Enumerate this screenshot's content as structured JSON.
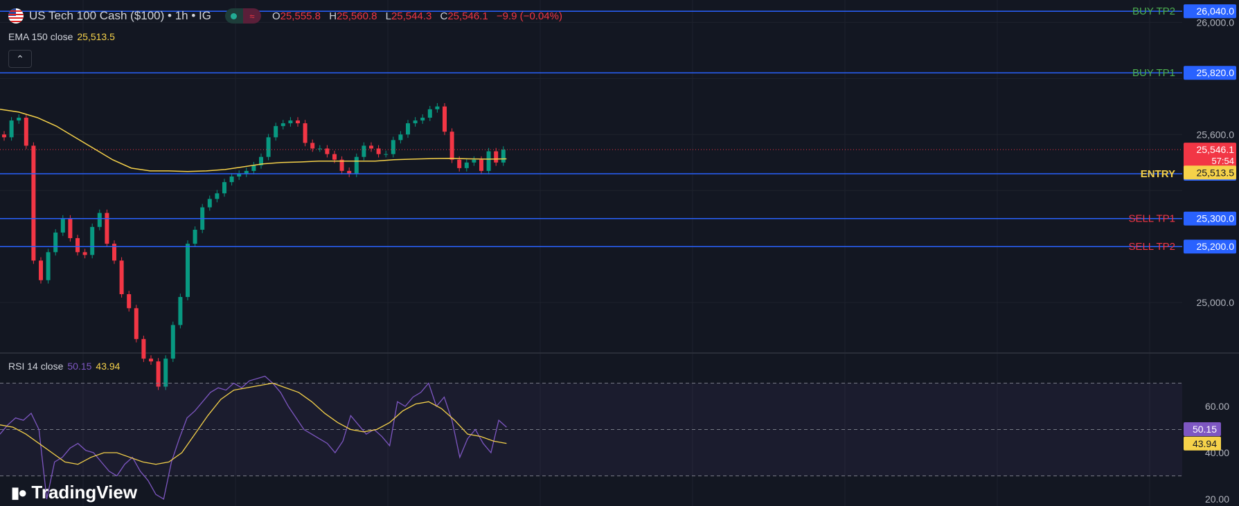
{
  "header": {
    "symbol_title": "US Tech 100 Cash ($100) • 1h • IG",
    "ohlc": [
      {
        "key": "O",
        "value": "25,555.8"
      },
      {
        "key": "H",
        "value": "25,560.8"
      },
      {
        "key": "L",
        "value": "25,544.3"
      },
      {
        "key": "C",
        "value": "25,546.1"
      }
    ],
    "change": "−9.9 (−0.04%)",
    "collapse_icon": "chevron-up-icon"
  },
  "ema_legend": {
    "label": "EMA 150 close",
    "value": "25,513.5"
  },
  "rsi_legend": {
    "label": "RSI 14 close",
    "value1": "50.15",
    "value2": "43.94"
  },
  "branding": {
    "text": "TradingView",
    "logo": "tv-logo-icon"
  },
  "colors": {
    "background": "#131722",
    "grid": "#1e222d",
    "up": "#089981",
    "down": "#f23645",
    "level_line": "#2962ff",
    "ema": "#f6d24a",
    "rsi": "#7e57c2",
    "rsi_ma": "#f6d24a",
    "buy_label": "#4caf50",
    "sell_label": "#f23645",
    "entry_label": "#f6d24a"
  },
  "chart_data": {
    "type": "candlestick",
    "y_axis_ticks": [
      "26,000.0",
      "25,600.0",
      "25,000.0"
    ],
    "price_range": [
      24820,
      26080
    ],
    "levels": [
      {
        "name": "BUY TP2",
        "value": "26,040.0",
        "price": 26040,
        "kind": "buy"
      },
      {
        "name": "BUY TP1",
        "value": "25,820.0",
        "price": 25820,
        "kind": "buy"
      },
      {
        "name": "ENTRY",
        "value": "25,460.0",
        "price": 25460,
        "kind": "entry"
      },
      {
        "name": "SELL TP1",
        "value": "25,300.0",
        "price": 25300,
        "kind": "sell"
      },
      {
        "name": "SELL TP2",
        "value": "25,200.0",
        "price": 25200,
        "kind": "sell"
      }
    ],
    "current_price": {
      "value": "25,546.1",
      "countdown": "57:54",
      "price": 25546.1
    },
    "ema_label": {
      "value": "25,513.5",
      "price": 25513.5
    },
    "ema_path": [
      25690,
      25680,
      25660,
      25630,
      25590,
      25550,
      25510,
      25480,
      25470,
      25470,
      25468,
      25470,
      25475,
      25485,
      25495,
      25500,
      25502,
      25505,
      25505,
      25505,
      25505,
      25510,
      25512,
      25514,
      25515,
      25513,
      25512,
      25513
    ],
    "closes": [
      25590,
      25650,
      25660,
      25560,
      25150,
      25080,
      25180,
      25250,
      25300,
      25230,
      25180,
      25170,
      25270,
      25320,
      25210,
      25150,
      25030,
      24980,
      24870,
      24800,
      24790,
      24700,
      24800,
      24920,
      25020,
      25210,
      25260,
      25340,
      25370,
      25390,
      25430,
      25450,
      25460,
      25470,
      25490,
      25520,
      25590,
      25630,
      25640,
      25650,
      25640,
      25570,
      25550,
      25550,
      25530,
      25510,
      25470,
      25460,
      25520,
      25560,
      25550,
      25530,
      25530,
      25580,
      25600,
      25640,
      25650,
      25660,
      25690,
      25700,
      25610,
      25510,
      25480,
      25500,
      25510,
      25470,
      25540,
      25500,
      25546
    ],
    "rsi": {
      "y_axis_ticks": [
        "60.00",
        "40.00",
        "20.00"
      ],
      "range": [
        17,
        83
      ],
      "upper_band": 70,
      "lower_band": 30,
      "mid": 50,
      "value1": "50.15",
      "value2": "43.94",
      "series": [
        48,
        52,
        55,
        54,
        57,
        50,
        20,
        36,
        38,
        42,
        44,
        41,
        40,
        36,
        32,
        30,
        35,
        38,
        32,
        28,
        22,
        20,
        36,
        46,
        55,
        58,
        62,
        66,
        68,
        67,
        70,
        68,
        71,
        72,
        73,
        70,
        66,
        60,
        55,
        50,
        48,
        46,
        44,
        40,
        45,
        56,
        52,
        48,
        50,
        47,
        43,
        62,
        60,
        64,
        66,
        70,
        60,
        64,
        54,
        38,
        46,
        50,
        44,
        40,
        54,
        51
      ],
      "ma_series": [
        52,
        51,
        48,
        44,
        40,
        36,
        35,
        38,
        40,
        40,
        38,
        36,
        35,
        36,
        40,
        48,
        56,
        63,
        67,
        68,
        69,
        70,
        68,
        66,
        62,
        57,
        53,
        50,
        49,
        50,
        53,
        58,
        61,
        62,
        59,
        54,
        48,
        47,
        45,
        44
      ]
    }
  }
}
